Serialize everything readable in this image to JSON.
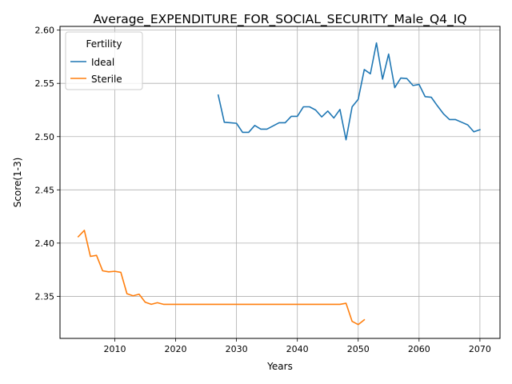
{
  "chart_data": {
    "type": "line",
    "title": "Average_EXPENDITURE_FOR_SOCIAL_SECURITY_Male_Q4_IQ",
    "xlabel": "Years",
    "ylabel": "Score(1-3)",
    "xlim": [
      2001,
      2073.3
    ],
    "ylim": [
      2.3105,
      2.6035
    ],
    "xticks": [
      2010,
      2020,
      2030,
      2040,
      2050,
      2060,
      2070
    ],
    "yticks": [
      2.35,
      2.4,
      2.45,
      2.5,
      2.55,
      2.6
    ],
    "grid": true,
    "legend": {
      "title": "Fertility",
      "placement": "upper-left"
    },
    "series": [
      {
        "name": "Ideal",
        "color": "#1f77b4",
        "x": [
          2027,
          2028,
          2029,
          2030,
          2031,
          2032,
          2033,
          2034,
          2035,
          2036,
          2037,
          2038,
          2039,
          2040,
          2041,
          2042,
          2043,
          2044,
          2045,
          2046,
          2047,
          2048,
          2049,
          2050,
          2051,
          2052,
          2053,
          2054,
          2055,
          2056,
          2057,
          2058,
          2059,
          2060,
          2061,
          2062,
          2063,
          2064,
          2065,
          2066,
          2067,
          2068,
          2069,
          2070
        ],
        "y": [
          2.539,
          2.5135,
          2.513,
          2.5125,
          2.504,
          2.504,
          2.5105,
          2.507,
          2.507,
          2.51,
          2.513,
          2.513,
          2.519,
          2.519,
          2.528,
          2.528,
          2.525,
          2.5185,
          2.524,
          2.5175,
          2.5255,
          2.497,
          2.528,
          2.535,
          2.563,
          2.559,
          2.588,
          2.554,
          2.5775,
          2.546,
          2.555,
          2.5545,
          2.548,
          2.549,
          2.5375,
          2.537,
          2.529,
          2.5215,
          2.516,
          2.516,
          2.5135,
          2.511,
          2.5045,
          2.5065
        ]
      },
      {
        "name": "Sterile",
        "color": "#ff7f0e",
        "x": [
          2004,
          2005,
          2006,
          2007,
          2008,
          2009,
          2010,
          2011,
          2012,
          2013,
          2014,
          2015,
          2016,
          2017,
          2018,
          2019,
          2020,
          2021,
          2022,
          2023,
          2024,
          2025,
          2026,
          2027,
          2028,
          2029,
          2030,
          2031,
          2032,
          2033,
          2034,
          2035,
          2036,
          2037,
          2038,
          2039,
          2040,
          2041,
          2042,
          2043,
          2044,
          2045,
          2046,
          2047,
          2048,
          2049,
          2050,
          2051
        ],
        "y": [
          2.406,
          2.412,
          2.3875,
          2.3885,
          2.374,
          2.373,
          2.3735,
          2.3725,
          2.3525,
          2.3505,
          2.352,
          2.3445,
          2.3425,
          2.344,
          2.3425,
          2.3425,
          2.3425,
          2.3425,
          2.3425,
          2.3425,
          2.3425,
          2.3425,
          2.3425,
          2.3425,
          2.3425,
          2.3425,
          2.3425,
          2.3425,
          2.3425,
          2.3425,
          2.3425,
          2.3425,
          2.3425,
          2.3425,
          2.3425,
          2.3425,
          2.3425,
          2.3425,
          2.3425,
          2.3425,
          2.3425,
          2.3425,
          2.3425,
          2.3425,
          2.3435,
          2.3265,
          2.3235,
          2.328
        ]
      }
    ]
  }
}
